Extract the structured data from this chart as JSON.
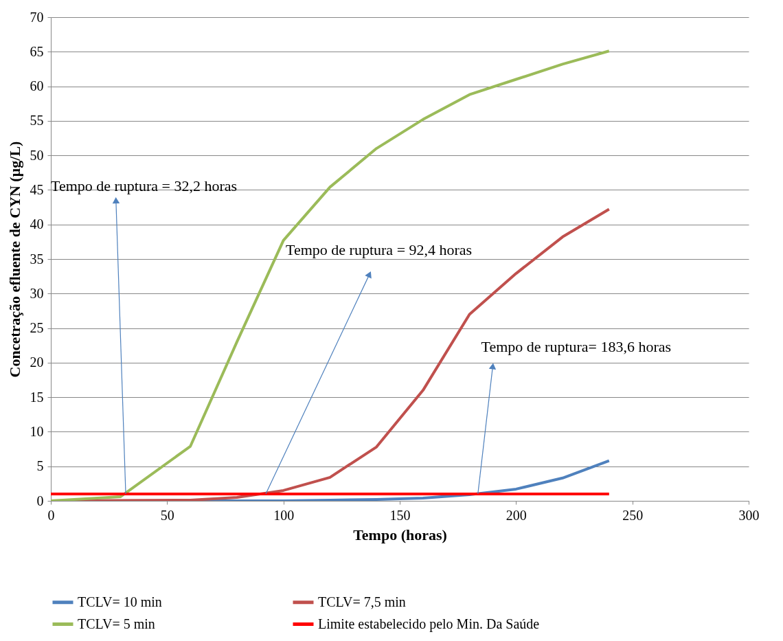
{
  "chart_data": {
    "type": "line",
    "xlabel": "Tempo (horas)",
    "ylabel": "Concetração efluente de CYN (µg/L)",
    "xlim": [
      0,
      300
    ],
    "xticks": [
      0,
      50,
      100,
      150,
      200,
      250,
      300
    ],
    "ylim": [
      0,
      70
    ],
    "yticks": [
      0,
      5,
      10,
      15,
      20,
      25,
      30,
      35,
      40,
      45,
      50,
      55,
      60,
      65,
      70
    ],
    "grid": "y",
    "legend": "bottom",
    "marker": "none",
    "line_style": "solid",
    "series": [
      {
        "name": "TCLV= 10 min",
        "color": "#4f81bd",
        "x": [
          0,
          60,
          100,
          120,
          140,
          160,
          180,
          200,
          220,
          240
        ],
        "values": [
          0,
          0,
          0,
          0.1,
          0.2,
          0.4,
          0.9,
          1.7,
          3.3,
          5.8
        ]
      },
      {
        "name": "TCLV= 7,5 min",
        "color": "#c0504d",
        "x": [
          0,
          60,
          80,
          100,
          120,
          140,
          160,
          180,
          200,
          220,
          240
        ],
        "values": [
          0,
          0.1,
          0.5,
          1.5,
          3.4,
          7.8,
          16,
          27,
          32.9,
          38.2,
          42.2
        ]
      },
      {
        "name": "TCLV= 5 min",
        "color": "#9bbb59",
        "x": [
          0,
          30,
          60,
          80,
          100,
          120,
          140,
          160,
          180,
          200,
          220,
          240
        ],
        "values": [
          0,
          0.6,
          7.9,
          23,
          37.7,
          45.4,
          51,
          55.2,
          58.8,
          61,
          63.2,
          65.1
        ]
      },
      {
        "name": "Limite estabelecido pelo Min. Da Saúde",
        "color": "#ff0000",
        "x": [
          0,
          240
        ],
        "values": [
          1,
          1
        ]
      }
    ],
    "annotations": [
      {
        "text": "Tempo de ruptura = 32,2 horas",
        "x": 32.2,
        "y": 1
      },
      {
        "text": "Tempo de ruptura = 92,4 horas",
        "x": 92.4,
        "y": 1
      },
      {
        "text": "Tempo de ruptura= 183,6 horas",
        "x": 183.6,
        "y": 1
      }
    ]
  }
}
